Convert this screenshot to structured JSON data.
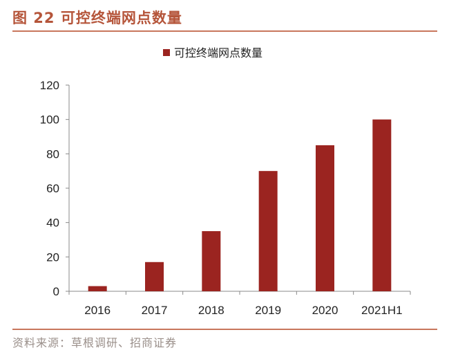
{
  "figure": {
    "title": "图 22 可控终端网点数量",
    "source": "资料来源：草根调研、招商证券"
  },
  "colors": {
    "bar": "#9b2420",
    "title": "#b5553a",
    "axis": "#888888"
  },
  "chart_data": {
    "type": "bar",
    "categories": [
      "2016",
      "2017",
      "2018",
      "2019",
      "2020",
      "2021H1"
    ],
    "series": [
      {
        "name": "可控终端网点数量",
        "values": [
          3,
          17,
          35,
          70,
          85,
          100
        ]
      }
    ],
    "ylim": [
      0,
      120
    ],
    "yticks": [
      0,
      20,
      40,
      60,
      80,
      100,
      120
    ],
    "ytick_labels": [
      "0",
      "20",
      "40",
      "60",
      "80",
      "100",
      "120"
    ],
    "legend": "top-center",
    "grid": false
  }
}
